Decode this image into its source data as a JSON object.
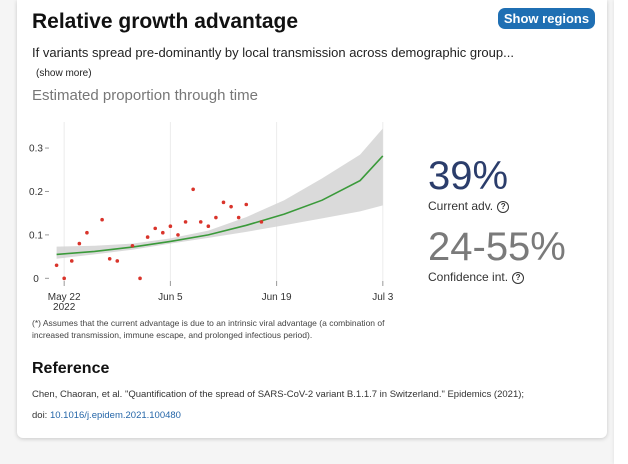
{
  "header": {
    "title": "Relative growth advantage",
    "regions_button": "Show regions"
  },
  "description": "If variants spread pre-dominantly by local transmission across demographic group...",
  "show_more": "(show more)",
  "subtitle": "Estimated proportion through time",
  "stats": {
    "current_adv_value": "39%",
    "current_adv_label": "Current adv.",
    "ci_value": "24-55%",
    "ci_label": "Confidence int.",
    "info_glyph": "?"
  },
  "footnote": "(*) Assumes that the current advantage is due to an intrinsic viral advantage (a combination of increased transmission, immune escape, and prolonged infectious period).",
  "reference": {
    "heading": "Reference",
    "citation": "Chen, Chaoran, et al. \"Quantification of the spread of SARS-CoV-2 variant B.1.1.7 in Switzerland.\" Epidemics (2021);",
    "doi_prefix": "doi: ",
    "doi_link": "10.1016/j.epidem.2021.100480"
  },
  "colors": {
    "fit_line": "#3a9a3a",
    "ci_band": "#d3d3d3",
    "points": "#d9342b",
    "button": "#1f6fb3"
  },
  "chart_data": {
    "type": "line",
    "title": "",
    "xlabel": "",
    "ylabel": "",
    "x_ticks": [
      "May 22 2022",
      "Jun 5",
      "Jun 19",
      "Jul 3"
    ],
    "y_ticks": [
      "0",
      "0.1",
      "0.2",
      "0.3"
    ],
    "xlim_days": [
      -2,
      44
    ],
    "ylim": [
      -0.02,
      0.36
    ],
    "grid": "vertical",
    "fit": {
      "day": [
        -1,
        4,
        9,
        14,
        19,
        24,
        29,
        34,
        39,
        42
      ],
      "value": [
        0.055,
        0.062,
        0.072,
        0.085,
        0.1,
        0.122,
        0.148,
        0.18,
        0.225,
        0.282
      ]
    },
    "ci_band": {
      "day": [
        -1,
        4,
        9,
        14,
        19,
        24,
        29,
        34,
        39,
        42
      ],
      "lower": [
        0.045,
        0.055,
        0.066,
        0.08,
        0.093,
        0.107,
        0.122,
        0.138,
        0.154,
        0.168
      ],
      "upper": [
        0.073,
        0.075,
        0.08,
        0.092,
        0.11,
        0.141,
        0.18,
        0.23,
        0.285,
        0.345
      ]
    },
    "points": {
      "day": [
        -1,
        0,
        1,
        2,
        3,
        5,
        6,
        7,
        9,
        10,
        11,
        12,
        13,
        14,
        15,
        16,
        17,
        18,
        19,
        20,
        21,
        22,
        23,
        24,
        26
      ],
      "value": [
        0.03,
        0.0,
        0.04,
        0.08,
        0.105,
        0.135,
        0.045,
        0.04,
        0.075,
        0.0,
        0.095,
        0.115,
        0.105,
        0.12,
        0.1,
        0.13,
        0.205,
        0.13,
        0.12,
        0.14,
        0.175,
        0.165,
        0.14,
        0.17,
        0.13
      ]
    }
  }
}
